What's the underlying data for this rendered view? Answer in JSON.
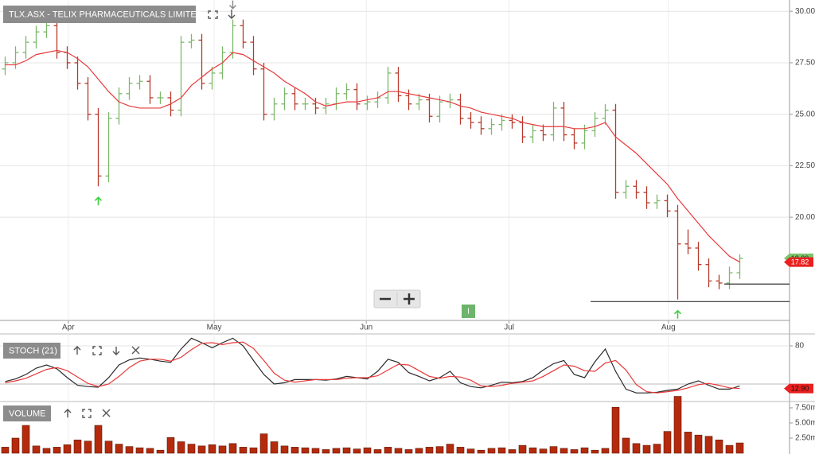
{
  "chart_data": [
    {
      "type": "ohlc",
      "title": "TLX.ASX - TELIX PHARMACEUTICALS LIMITED",
      "categories": [
        null,
        null,
        null,
        null,
        null,
        null,
        null,
        null,
        null,
        null,
        null,
        null,
        null,
        null,
        null,
        null,
        null,
        null,
        null,
        null,
        null,
        null,
        null,
        null,
        null,
        null,
        null,
        null,
        null,
        null,
        null,
        null,
        null,
        null,
        null,
        null,
        null,
        null,
        null,
        null,
        null,
        null,
        null,
        null,
        null,
        null,
        null,
        null,
        null,
        null,
        null,
        null,
        null,
        null,
        null,
        null,
        null,
        null,
        null,
        null,
        null,
        null,
        null,
        null,
        null,
        null,
        null,
        null,
        null,
        null,
        null,
        null
      ],
      "open": [
        27.2,
        27.5,
        28.0,
        28.5,
        29.0,
        29.3,
        28.0,
        27.5,
        26.5,
        25.0,
        22.0,
        24.8,
        26.0,
        26.5,
        26.6,
        25.8,
        25.8,
        25.2,
        28.5,
        28.6,
        26.5,
        27.0,
        28.0,
        29.3,
        28.5,
        27.2,
        25.0,
        25.5,
        26.0,
        25.5,
        25.5,
        25.3,
        25.5,
        26.0,
        26.2,
        25.5,
        25.6,
        25.8,
        27.0,
        25.9,
        25.5,
        25.7,
        24.9,
        25.6,
        25.7,
        24.8,
        24.6,
        24.3,
        24.5,
        24.7,
        24.6,
        23.9,
        24.2,
        24.0,
        25.3,
        24.0,
        23.6,
        24.2,
        24.8,
        25.2,
        21.2,
        21.5,
        21.2,
        20.7,
        20.8,
        20.3,
        18.7,
        18.5,
        17.7,
        16.9,
        16.8,
        17.3
      ],
      "high": [
        27.8,
        28.3,
        28.8,
        29.3,
        29.6,
        29.6,
        28.3,
        27.8,
        26.8,
        25.3,
        25.1,
        26.3,
        26.8,
        26.9,
        26.9,
        26.1,
        26.1,
        28.8,
        28.9,
        28.9,
        27.3,
        28.3,
        29.6,
        29.6,
        28.8,
        27.5,
        25.8,
        26.3,
        26.3,
        25.8,
        25.8,
        25.8,
        26.3,
        26.5,
        26.5,
        25.9,
        26.1,
        27.3,
        27.3,
        26.2,
        26.0,
        26.0,
        25.9,
        26.0,
        26.0,
        25.1,
        24.9,
        24.8,
        25.0,
        25.0,
        24.9,
        24.5,
        24.5,
        25.6,
        25.6,
        24.3,
        24.5,
        25.1,
        25.5,
        25.5,
        21.8,
        21.8,
        21.5,
        21.1,
        21.1,
        20.6,
        19.4,
        18.8,
        18.0,
        17.2,
        17.6,
        18.2
      ],
      "low": [
        26.9,
        27.2,
        27.7,
        28.2,
        28.7,
        27.7,
        27.2,
        26.2,
        24.7,
        21.5,
        21.7,
        24.5,
        25.7,
        26.2,
        25.5,
        25.5,
        24.9,
        24.9,
        28.2,
        26.2,
        26.2,
        26.7,
        27.7,
        28.2,
        26.9,
        24.7,
        24.7,
        25.2,
        25.2,
        25.2,
        25.0,
        25.0,
        25.2,
        25.7,
        25.2,
        25.2,
        25.3,
        25.5,
        25.6,
        25.2,
        25.2,
        24.6,
        24.6,
        25.3,
        24.5,
        24.3,
        24.0,
        24.0,
        24.2,
        24.3,
        23.6,
        23.6,
        23.7,
        23.7,
        23.7,
        23.3,
        23.3,
        23.9,
        24.5,
        20.9,
        20.9,
        20.9,
        20.4,
        20.4,
        20.0,
        16.0,
        18.2,
        17.4,
        16.6,
        16.5,
        16.5,
        17.0
      ],
      "close": [
        27.5,
        28.0,
        28.5,
        29.0,
        29.3,
        28.0,
        27.5,
        26.5,
        25.0,
        22.0,
        24.8,
        26.0,
        26.5,
        26.6,
        25.8,
        25.8,
        25.2,
        28.5,
        28.6,
        26.5,
        27.0,
        28.0,
        29.3,
        28.5,
        27.2,
        25.0,
        25.5,
        26.0,
        25.5,
        25.5,
        25.3,
        25.5,
        26.0,
        26.2,
        25.5,
        25.6,
        25.8,
        27.0,
        25.9,
        25.5,
        25.7,
        24.9,
        25.6,
        25.7,
        24.8,
        24.6,
        24.3,
        24.5,
        24.7,
        24.6,
        23.9,
        24.2,
        24.0,
        25.3,
        24.0,
        23.6,
        24.2,
        24.8,
        25.2,
        21.2,
        21.5,
        21.2,
        20.7,
        20.8,
        20.3,
        18.7,
        18.5,
        17.7,
        16.9,
        16.8,
        17.3,
        18.0
      ],
      "up_color": "#7cb86a",
      "down_color": "#b8392b",
      "ma": {
        "color": "#e8393a",
        "values": [
          27.4,
          27.4,
          27.6,
          27.9,
          28.0,
          28.1,
          28.0,
          27.7,
          27.3,
          26.7,
          26.1,
          25.6,
          25.4,
          25.3,
          25.3,
          25.3,
          25.5,
          25.8,
          26.4,
          26.8,
          27.2,
          27.5,
          28.0,
          27.9,
          27.6,
          27.3,
          27.0,
          26.6,
          26.3,
          26.0,
          25.6,
          25.4,
          25.5,
          25.6,
          25.6,
          25.7,
          25.8,
          26.1,
          26.1,
          26.0,
          25.9,
          25.8,
          25.7,
          25.6,
          25.4,
          25.3,
          25.1,
          25.0,
          24.9,
          24.8,
          24.6,
          24.5,
          24.4,
          24.4,
          24.4,
          24.3,
          24.3,
          24.4,
          24.6,
          23.9,
          23.5,
          23.1,
          22.6,
          22.1,
          21.6,
          20.9,
          20.3,
          19.7,
          19.1,
          18.6,
          18.1,
          17.82
        ]
      },
      "last_price": {
        "value": 18.0,
        "label": "18.00"
      },
      "buy_signals": [
        9,
        65
      ],
      "sell_signals": [
        22
      ],
      "levels": [
        16.75,
        15.9
      ],
      "marker": "I",
      "ylim": [
        15.1,
        30.55
      ],
      "yticks": [
        {
          "value": 20,
          "label": "20.00"
        },
        {
          "value": 22.5,
          "label": "22.50"
        },
        {
          "value": 25,
          "label": "25.00"
        },
        {
          "value": 27.5,
          "label": "27.50"
        },
        {
          "value": 30,
          "label": "30.00"
        }
      ],
      "xticks": [
        {
          "value": 6.1,
          "label": "Apr"
        },
        {
          "value": 20.2,
          "label": "May"
        },
        {
          "value": 34.9,
          "label": "Jun"
        },
        {
          "value": 48.7,
          "label": "Jul"
        },
        {
          "value": 64.1,
          "label": "Aug"
        }
      ],
      "grid": true
    },
    {
      "type": "line",
      "title": "STOCH (21)",
      "series": [
        {
          "color": "#2a2a2a",
          "values": [
            24,
            28,
            35,
            45,
            50,
            44,
            30,
            18,
            16,
            15,
            30,
            50,
            58,
            61,
            59,
            56,
            54,
            75,
            92,
            85,
            77,
            85,
            92,
            80,
            57,
            35,
            20,
            22,
            27,
            27,
            27,
            26,
            28,
            32,
            30,
            28,
            40,
            59,
            54,
            38,
            32,
            25,
            30,
            40,
            22,
            16,
            14,
            18,
            23,
            22,
            24,
            30,
            42,
            52,
            57,
            35,
            30,
            55,
            75,
            40,
            12,
            6,
            6,
            7,
            10,
            12,
            20,
            25,
            18,
            12,
            12,
            17
          ]
        },
        {
          "color": "#e8393a",
          "values": [
            22,
            25,
            29,
            36,
            43,
            46,
            41,
            31,
            21,
            16,
            20,
            32,
            46,
            56,
            59,
            59,
            56,
            62,
            74,
            84,
            85,
            82,
            85,
            86,
            76,
            57,
            37,
            26,
            23,
            25,
            27,
            27,
            27,
            29,
            30,
            30,
            33,
            42,
            51,
            50,
            41,
            32,
            29,
            32,
            31,
            26,
            17,
            16,
            18,
            21,
            23,
            25,
            32,
            41,
            50,
            48,
            41,
            40,
            53,
            57,
            42,
            19,
            8,
            6,
            8,
            10,
            14,
            19,
            21,
            18,
            14,
            12.9
          ]
        }
      ],
      "last_tag": {
        "value": 12.9,
        "label": "12.90"
      },
      "level": 20,
      "ylim": [
        -7.5,
        117.5
      ],
      "yticks": [
        80
      ]
    },
    {
      "type": "bar",
      "title": "VOLUME",
      "color": "#b52a0c",
      "values": [
        1.0,
        2.5,
        4.6,
        1.2,
        0.8,
        1.0,
        1.4,
        2.2,
        2.0,
        4.6,
        2.0,
        1.5,
        1.1,
        0.9,
        0.8,
        0.5,
        2.6,
        1.9,
        1.5,
        1.2,
        1.4,
        1.2,
        1.6,
        1.0,
        0.9,
        3.2,
        1.9,
        1.2,
        1.0,
        0.9,
        0.8,
        0.6,
        0.8,
        0.9,
        0.7,
        0.9,
        0.6,
        1.0,
        0.8,
        0.6,
        0.8,
        1.0,
        1.1,
        1.5,
        1.0,
        0.7,
        0.5,
        0.8,
        0.9,
        0.6,
        1.3,
        0.9,
        0.7,
        1.1,
        0.8,
        0.6,
        0.9,
        0.5,
        0.8,
        7.6,
        2.5,
        1.6,
        1.3,
        1.5,
        3.6,
        9.4,
        3.5,
        3.0,
        2.8,
        2.2,
        1.3,
        1.7
      ],
      "ylim": [
        0,
        9.6
      ],
      "yticks": [
        {
          "value": 2.5,
          "label": "2.50m"
        },
        {
          "value": 5,
          "label": "5.00m"
        },
        {
          "value": 7.5,
          "label": "7.50m"
        }
      ]
    }
  ]
}
